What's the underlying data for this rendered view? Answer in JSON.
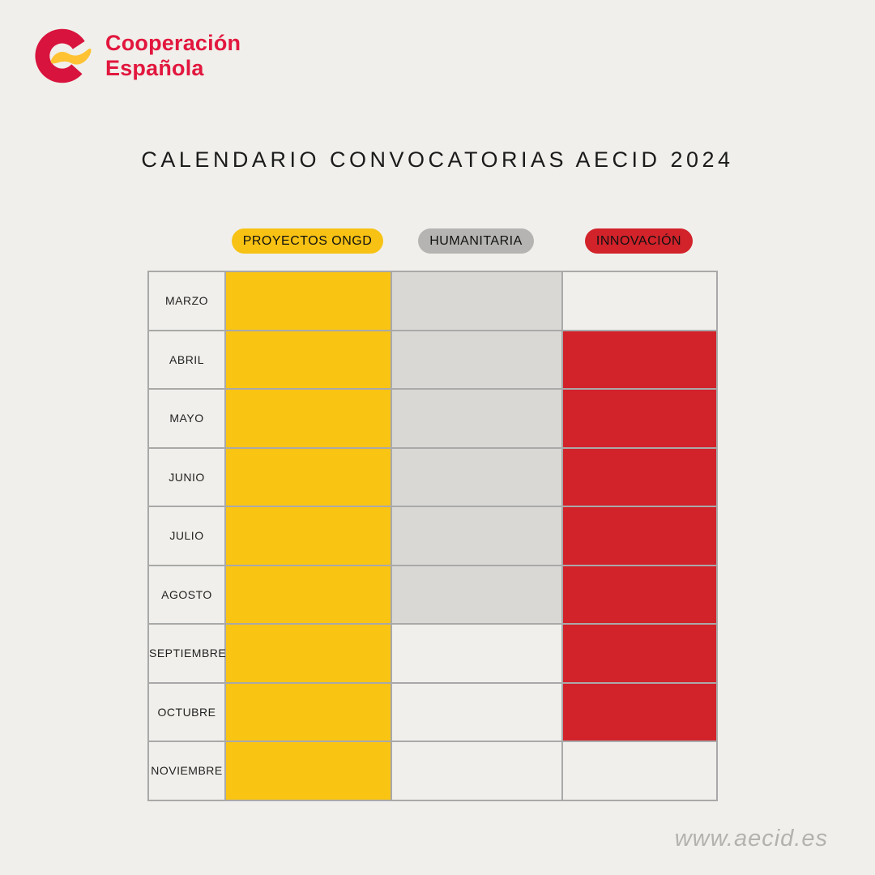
{
  "page": {
    "background": "#F0EFEB"
  },
  "brand": {
    "name_line1": "Cooperación",
    "name_line2": "Española",
    "logo_red": "#D8133D",
    "logo_yellow": "#FFC233",
    "text_color": "#E2173E"
  },
  "title": "CALENDARIO CONVOCATORIAS AECID 2024",
  "legend": {
    "items": [
      {
        "id": "proyectos-ongd",
        "label": "PROYECTOS ONGD",
        "color": "#F7C213"
      },
      {
        "id": "humanitaria",
        "label": "HUMANITARIA",
        "color": "#B5B4B2"
      },
      {
        "id": "innovacion",
        "label": "INNOVACIÓN",
        "color": "#D2222A"
      }
    ]
  },
  "chart_data": {
    "type": "table",
    "title": "CALENDARIO CONVOCATORIAS AECID 2024",
    "categories": [
      "MARZO",
      "ABRIL",
      "MAYO",
      "JUNIO",
      "JULIO",
      "AGOSTO",
      "SEPTIEMBRE",
      "OCTUBRE",
      "NOVIEMBRE"
    ],
    "series": [
      {
        "name": "PROYECTOS ONGD",
        "color": "#FAC413",
        "values": [
          1,
          1,
          1,
          1,
          1,
          1,
          1,
          1,
          1
        ]
      },
      {
        "name": "HUMANITARIA",
        "color": "#D9D8D5",
        "values": [
          1,
          1,
          1,
          1,
          1,
          1,
          0,
          0,
          0
        ]
      },
      {
        "name": "INNOVACIÓN",
        "color": "#D2222A",
        "values": [
          0,
          1,
          1,
          1,
          1,
          1,
          1,
          1,
          0
        ]
      }
    ],
    "empty_cell_color": "#F0EFEB",
    "grid_color": "#A9A9A9",
    "legend_position": "top"
  },
  "footer": {
    "url": "www.aecid.es"
  }
}
